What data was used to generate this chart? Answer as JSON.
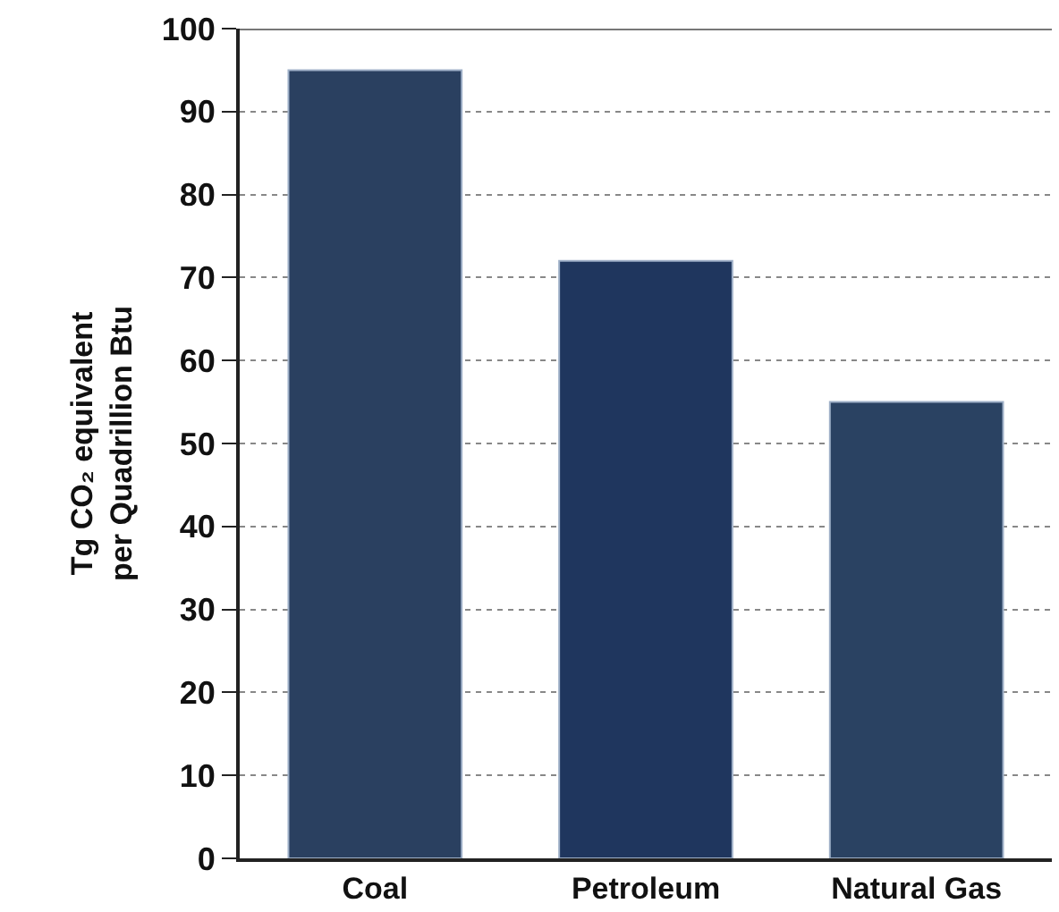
{
  "chart_data": {
    "type": "bar",
    "ylabel": "Tg CO₂ equivalent\nper Quadrillion Btu",
    "categories": [
      "Coal",
      "Petroleum",
      "Natural Gas"
    ],
    "values": [
      95,
      72,
      55
    ],
    "colors": [
      "#2a4060",
      "#1f365e",
      "#2a4262"
    ],
    "ylim": [
      0,
      100
    ],
    "yticks": [
      0,
      10,
      20,
      30,
      40,
      50,
      60,
      70,
      80,
      90,
      100
    ],
    "grid": "y"
  }
}
